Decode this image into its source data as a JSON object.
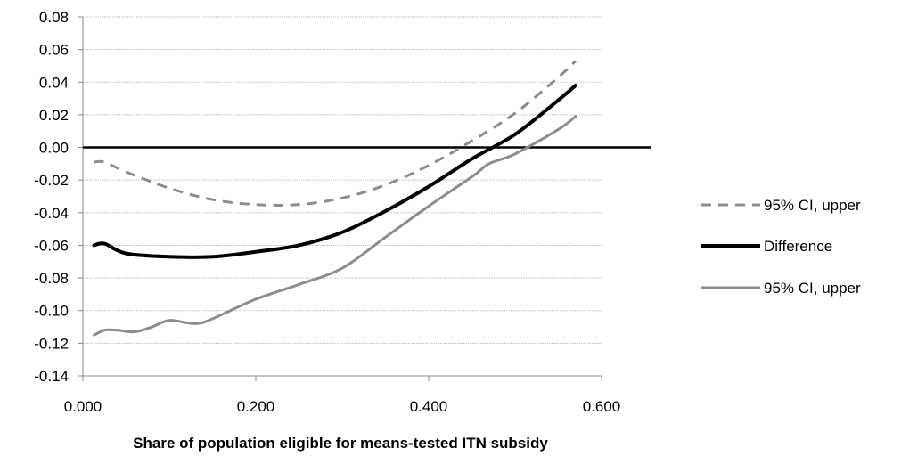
{
  "chart_data": {
    "type": "line",
    "title": "",
    "xlabel": "Share of population eligible for means-tested ITN subsidy",
    "ylabel": "",
    "xlim": [
      0,
      0.6
    ],
    "ylim": [
      -0.14,
      0.08
    ],
    "x_ticks": [
      "0.000",
      "0.200",
      "0.400",
      "0.600"
    ],
    "y_ticks": [
      "0.08",
      "0.06",
      "0.04",
      "0.02",
      "0.00",
      "-0.02",
      "-0.04",
      "-0.06",
      "-0.08",
      "-0.10",
      "-0.12",
      "-0.14"
    ],
    "grid": true,
    "legend_position": "right",
    "series": [
      {
        "name": "95% CI, upper",
        "style": "dashed",
        "color": "#8c8c8c",
        "x": [
          0.013,
          0.025,
          0.05,
          0.1,
          0.15,
          0.2,
          0.25,
          0.3,
          0.35,
          0.4,
          0.45,
          0.5,
          0.55,
          0.57
        ],
        "y": [
          -0.009,
          -0.009,
          -0.015,
          -0.025,
          -0.032,
          -0.035,
          -0.035,
          -0.031,
          -0.023,
          -0.011,
          0.004,
          0.021,
          0.043,
          0.053
        ]
      },
      {
        "name": "Difference",
        "style": "solid",
        "color": "#000000",
        "x": [
          0.013,
          0.025,
          0.05,
          0.1,
          0.15,
          0.2,
          0.25,
          0.3,
          0.35,
          0.4,
          0.45,
          0.5,
          0.55,
          0.57
        ],
        "y": [
          -0.06,
          -0.059,
          -0.065,
          -0.067,
          -0.067,
          -0.064,
          -0.06,
          -0.052,
          -0.039,
          -0.024,
          -0.007,
          0.008,
          0.029,
          0.038
        ]
      },
      {
        "name": "95% CI, upper",
        "style": "solid",
        "color": "#8c8c8c",
        "x": [
          0.013,
          0.025,
          0.04,
          0.06,
          0.08,
          0.1,
          0.13,
          0.15,
          0.2,
          0.25,
          0.3,
          0.35,
          0.4,
          0.45,
          0.47,
          0.5,
          0.55,
          0.57
        ],
        "y": [
          -0.115,
          -0.112,
          -0.112,
          -0.113,
          -0.11,
          -0.106,
          -0.108,
          -0.105,
          -0.093,
          -0.084,
          -0.074,
          -0.055,
          -0.036,
          -0.018,
          -0.01,
          -0.004,
          0.011,
          0.019
        ]
      }
    ]
  }
}
